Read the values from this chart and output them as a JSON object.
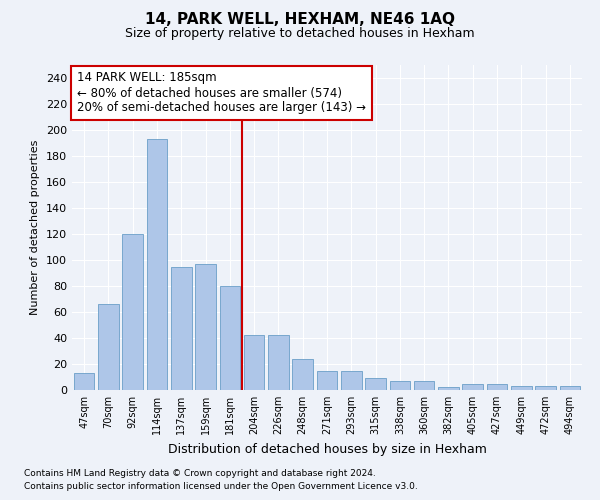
{
  "title": "14, PARK WELL, HEXHAM, NE46 1AQ",
  "subtitle": "Size of property relative to detached houses in Hexham",
  "xlabel": "Distribution of detached houses by size in Hexham",
  "ylabel": "Number of detached properties",
  "categories": [
    "47sqm",
    "70sqm",
    "92sqm",
    "114sqm",
    "137sqm",
    "159sqm",
    "181sqm",
    "204sqm",
    "226sqm",
    "248sqm",
    "271sqm",
    "293sqm",
    "315sqm",
    "338sqm",
    "360sqm",
    "382sqm",
    "405sqm",
    "427sqm",
    "449sqm",
    "472sqm",
    "494sqm"
  ],
  "values": [
    13,
    66,
    120,
    193,
    95,
    97,
    80,
    42,
    42,
    24,
    15,
    15,
    9,
    7,
    7,
    2,
    5,
    5,
    3,
    3,
    3
  ],
  "bar_color": "#aec6e8",
  "bar_edge_color": "#6a9fc8",
  "vline_color": "#cc0000",
  "annotation_box_text": "14 PARK WELL: 185sqm\n← 80% of detached houses are smaller (574)\n20% of semi-detached houses are larger (143) →",
  "annotation_box_color": "#cc0000",
  "annotation_box_fill": "#ffffff",
  "ylim": [
    0,
    250
  ],
  "yticks": [
    0,
    20,
    40,
    60,
    80,
    100,
    120,
    140,
    160,
    180,
    200,
    220,
    240
  ],
  "bg_color": "#eef2f9",
  "grid_color": "#ffffff",
  "footer_line1": "Contains HM Land Registry data © Crown copyright and database right 2024.",
  "footer_line2": "Contains public sector information licensed under the Open Government Licence v3.0."
}
